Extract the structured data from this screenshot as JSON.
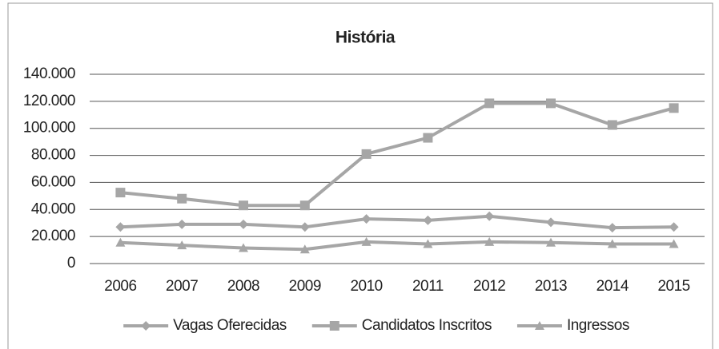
{
  "chart_data": {
    "type": "line",
    "title": "História",
    "categories": [
      "2006",
      "2007",
      "2008",
      "2009",
      "2010",
      "2011",
      "2012",
      "2013",
      "2014",
      "2015"
    ],
    "series": [
      {
        "name": "Vagas Oferecidas",
        "color": "#a6a6a6",
        "marker": "diamond",
        "values": [
          27000,
          29000,
          29000,
          27000,
          33000,
          32000,
          35000,
          30500,
          26500,
          27000
        ]
      },
      {
        "name": "Candidatos Inscritos",
        "color": "#a6a6a6",
        "marker": "square",
        "values": [
          52500,
          48000,
          43000,
          43000,
          81000,
          93000,
          118500,
          118500,
          102500,
          115000
        ]
      },
      {
        "name": "Ingressos",
        "color": "#a6a6a6",
        "marker": "triangle",
        "values": [
          15500,
          13500,
          11500,
          10500,
          16000,
          14500,
          16000,
          15500,
          14500,
          14500
        ]
      }
    ],
    "ylim": [
      0,
      140000
    ],
    "yticks": [
      0,
      {
        "value": 20000,
        "label": "20.000"
      },
      {
        "value": 40000,
        "label": "40.000"
      },
      {
        "value": 60000,
        "label": "60.000"
      },
      {
        "value": 80000,
        "label": "80.000"
      },
      {
        "value": 100000,
        "label": "100.000"
      },
      {
        "value": 120000,
        "label": "120.000"
      },
      {
        "value": 140000,
        "label": "140.000"
      }
    ],
    "grid": true,
    "legend": "bottom"
  }
}
